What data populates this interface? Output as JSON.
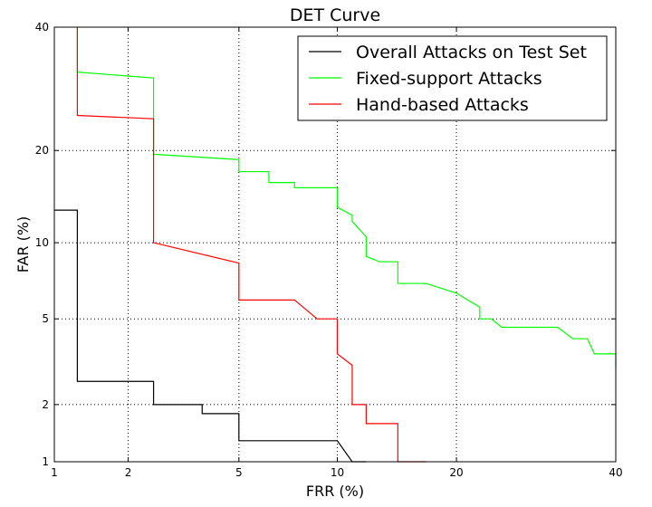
{
  "chart_data": {
    "type": "line",
    "title": "DET Curve",
    "xlabel": "FRR (%)",
    "ylabel": "FAR (%)",
    "xscale": "normal-deviate",
    "yscale": "normal-deviate",
    "xlim": [
      1,
      40
    ],
    "ylim": [
      1,
      40
    ],
    "xticks": [
      1,
      2,
      5,
      10,
      20,
      40
    ],
    "yticks": [
      1,
      2,
      5,
      10,
      20,
      40
    ],
    "grid": true,
    "legend_position": "top-right",
    "series": [
      {
        "name": "Overall Attacks on Test Set",
        "color": "#000000",
        "points": [
          [
            1.0,
            13.0
          ],
          [
            1.25,
            13.0
          ],
          [
            1.25,
            2.6
          ],
          [
            2.5,
            2.6
          ],
          [
            2.5,
            2.0
          ],
          [
            3.75,
            2.0
          ],
          [
            3.75,
            1.8
          ],
          [
            5.0,
            1.8
          ],
          [
            5.0,
            1.3
          ],
          [
            10.0,
            1.3
          ],
          [
            11.0,
            1.0
          ],
          [
            12.0,
            1.0
          ]
        ]
      },
      {
        "name": "Fixed-support Attacks",
        "color": "#00ff00",
        "points": [
          [
            1.25,
            40.0
          ],
          [
            1.25,
            32.0
          ],
          [
            2.5,
            31.0
          ],
          [
            2.5,
            19.5
          ],
          [
            5.0,
            18.8
          ],
          [
            5.0,
            17.3
          ],
          [
            6.25,
            17.3
          ],
          [
            6.25,
            16.0
          ],
          [
            7.5,
            16.0
          ],
          [
            7.5,
            15.4
          ],
          [
            10.0,
            15.4
          ],
          [
            10.0,
            13.3
          ],
          [
            11.0,
            12.5
          ],
          [
            11.0,
            11.9
          ],
          [
            12.0,
            10.5
          ],
          [
            12.0,
            8.9
          ],
          [
            13.0,
            8.5
          ],
          [
            14.5,
            8.5
          ],
          [
            14.5,
            7.0
          ],
          [
            17.0,
            7.0
          ],
          [
            20.0,
            6.4
          ],
          [
            22.5,
            5.6
          ],
          [
            22.5,
            5.0
          ],
          [
            23.8,
            5.0
          ],
          [
            25.0,
            4.6
          ],
          [
            32.0,
            4.6
          ],
          [
            34.0,
            4.1
          ],
          [
            36.0,
            4.1
          ],
          [
            37.0,
            3.5
          ],
          [
            40.0,
            3.5
          ],
          [
            40.0,
            3.0
          ]
        ]
      },
      {
        "name": "Hand-based Attacks",
        "color": "#ff0000",
        "points": [
          [
            1.25,
            40.0
          ],
          [
            1.25,
            25.0
          ],
          [
            2.5,
            24.5
          ],
          [
            2.5,
            10.0
          ],
          [
            5.0,
            8.4
          ],
          [
            5.0,
            6.0
          ],
          [
            7.5,
            6.0
          ],
          [
            8.75,
            5.0
          ],
          [
            10.0,
            5.0
          ],
          [
            10.0,
            3.5
          ],
          [
            11.0,
            3.1
          ],
          [
            11.0,
            2.0
          ],
          [
            12.0,
            2.0
          ],
          [
            12.0,
            1.6
          ],
          [
            14.5,
            1.6
          ],
          [
            14.5,
            1.0
          ],
          [
            17.0,
            1.0
          ]
        ]
      }
    ]
  }
}
